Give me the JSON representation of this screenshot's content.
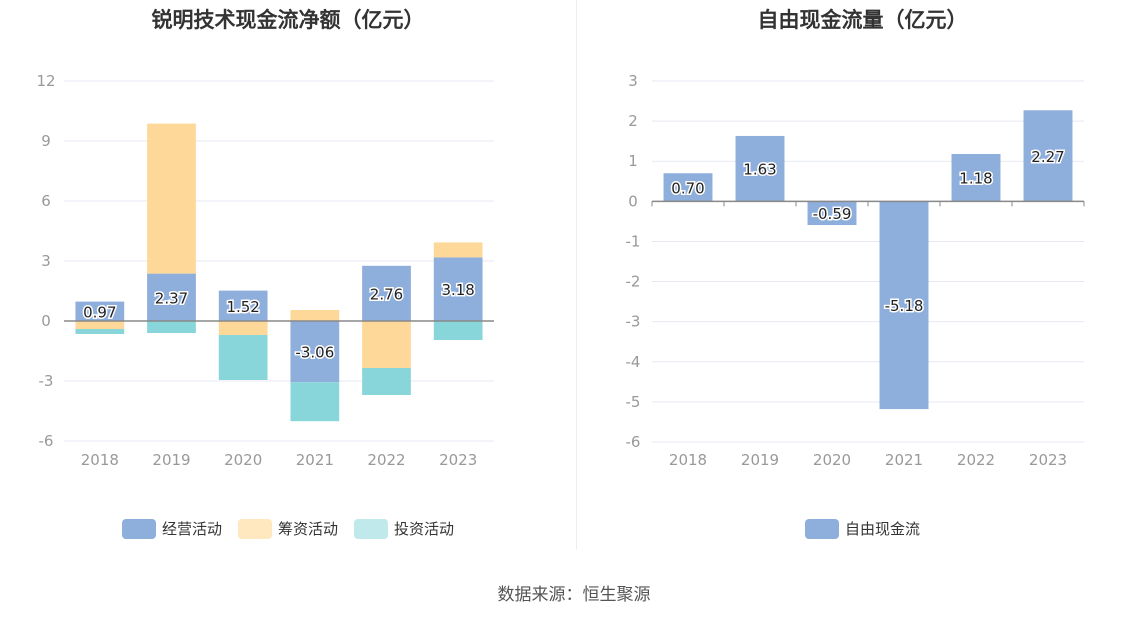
{
  "source": "数据来源：恒生聚源",
  "chart_data": [
    {
      "type": "bar",
      "stacked": true,
      "title": "锐明技术现金流净额（亿元）",
      "categories": [
        "2018",
        "2019",
        "2020",
        "2021",
        "2022",
        "2023"
      ],
      "ylim": [
        -6,
        12
      ],
      "yticks": [
        -6,
        -3,
        0,
        3,
        6,
        9,
        12
      ],
      "grid": true,
      "legend_position": "bottom",
      "series": [
        {
          "name": "经营活动",
          "color": "#8eaedc",
          "values": [
            0.97,
            2.37,
            1.52,
            -3.06,
            2.76,
            3.18
          ],
          "labels": [
            "0.97",
            "2.37",
            "1.52",
            "-3.06",
            "2.76",
            "3.18"
          ]
        },
        {
          "name": "筹资活动",
          "color": "#fed898",
          "values": [
            -0.4,
            7.5,
            -0.7,
            0.55,
            -2.35,
            0.75
          ]
        },
        {
          "name": "投资活动",
          "color": "#88d6d9",
          "values": [
            -0.25,
            -0.6,
            -2.25,
            -1.95,
            -1.35,
            -0.95
          ]
        }
      ],
      "legend": [
        {
          "name": "经营活动",
          "color": "#8eaedc"
        },
        {
          "name": "筹资活动",
          "color": "#ffe7bf"
        },
        {
          "name": "投资活动",
          "color": "#c0e9ec"
        }
      ]
    },
    {
      "type": "bar",
      "title": "自由现金流量（亿元）",
      "categories": [
        "2018",
        "2019",
        "2020",
        "2021",
        "2022",
        "2023"
      ],
      "ylim": [
        -6,
        3
      ],
      "yticks": [
        -6,
        -5,
        -4,
        -3,
        -2,
        -1,
        0,
        1,
        2,
        3
      ],
      "grid": true,
      "legend_position": "bottom",
      "series": [
        {
          "name": "自由现金流",
          "color": "#8eaedc",
          "values": [
            0.7,
            1.63,
            -0.59,
            -5.18,
            1.18,
            2.27
          ],
          "labels": [
            "0.70",
            "1.63",
            "-0.59",
            "-5.18",
            "1.18",
            "2.27"
          ]
        }
      ],
      "legend": [
        {
          "name": "自由现金流",
          "color": "#8eaedc"
        }
      ]
    }
  ]
}
